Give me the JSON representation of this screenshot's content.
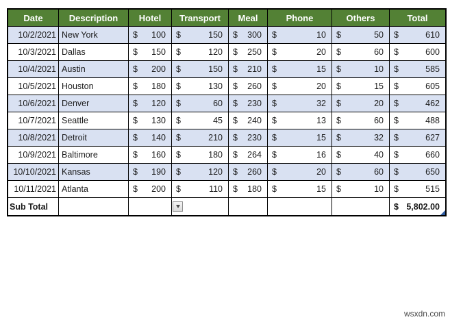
{
  "window": {
    "watermark": "wsxdn.com"
  },
  "theme": {
    "header_bg": "#538135",
    "header_text": "#FFFFFF",
    "band_row_bg": "#D9E1F2",
    "plain_row_bg": "#FFFFFF",
    "border_color": "#000000",
    "resize_handle_color": "#2E5B9F"
  },
  "table": {
    "columns": [
      "Date",
      "Description",
      "Hotel",
      "Transport",
      "Meal",
      "Phone",
      "Others",
      "Total"
    ],
    "currency_symbol": "$",
    "rows": [
      {
        "date": "10/2/2021",
        "description": "New York",
        "hotel": "100",
        "transport": "150",
        "meal": "300",
        "phone": "10",
        "others": "50",
        "total": "610"
      },
      {
        "date": "10/3/2021",
        "description": "Dallas",
        "hotel": "150",
        "transport": "120",
        "meal": "250",
        "phone": "20",
        "others": "60",
        "total": "600"
      },
      {
        "date": "10/4/2021",
        "description": "Austin",
        "hotel": "200",
        "transport": "150",
        "meal": "210",
        "phone": "15",
        "others": "10",
        "total": "585"
      },
      {
        "date": "10/5/2021",
        "description": "Houston",
        "hotel": "180",
        "transport": "130",
        "meal": "260",
        "phone": "20",
        "others": "15",
        "total": "605"
      },
      {
        "date": "10/6/2021",
        "description": "Denver",
        "hotel": "120",
        "transport": "60",
        "meal": "230",
        "phone": "32",
        "others": "20",
        "total": "462"
      },
      {
        "date": "10/7/2021",
        "description": "Seattle",
        "hotel": "130",
        "transport": "45",
        "meal": "240",
        "phone": "13",
        "others": "60",
        "total": "488"
      },
      {
        "date": "10/8/2021",
        "description": "Detroit",
        "hotel": "140",
        "transport": "210",
        "meal": "230",
        "phone": "15",
        "others": "32",
        "total": "627"
      },
      {
        "date": "10/9/2021",
        "description": "Baltimore",
        "hotel": "160",
        "transport": "180",
        "meal": "264",
        "phone": "16",
        "others": "40",
        "total": "660"
      },
      {
        "date": "10/10/2021",
        "description": "Kansas",
        "hotel": "190",
        "transport": "120",
        "meal": "260",
        "phone": "20",
        "others": "60",
        "total": "650"
      },
      {
        "date": "10/11/2021",
        "description": "Atlanta",
        "hotel": "200",
        "transport": "110",
        "meal": "180",
        "phone": "15",
        "others": "10",
        "total": "515"
      }
    ],
    "subtotal": {
      "label": "Sub Total",
      "currency": "$",
      "amount": "5,802.00"
    }
  }
}
